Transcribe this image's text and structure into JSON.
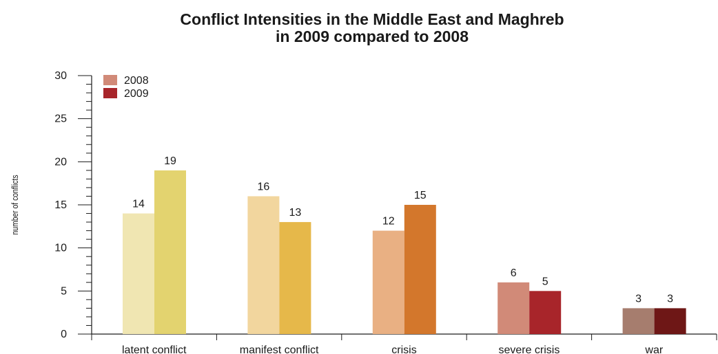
{
  "chart_data": {
    "type": "bar",
    "title": "Conflict Intensities in the Middle East and Maghreb",
    "subtitle": "in 2009 compared to 2008",
    "xlabel": "",
    "ylabel": "number of conflicts",
    "ylim": [
      0,
      30
    ],
    "yticks": [
      0,
      5,
      10,
      15,
      20,
      25,
      30
    ],
    "grid": false,
    "legend_position": "top-left",
    "categories": [
      "latent conflict",
      "manifest conflict",
      "crisis",
      "severe crisis",
      "war"
    ],
    "series": [
      {
        "name": "2008",
        "values": [
          14,
          16,
          12,
          6,
          3
        ],
        "legend_color": "#d18a78",
        "colors": [
          "#f0e6b2",
          "#f2d69e",
          "#e9b083",
          "#d18a78",
          "#a67d6e"
        ]
      },
      {
        "name": "2009",
        "values": [
          19,
          13,
          15,
          5,
          3
        ],
        "legend_color": "#a8252a",
        "colors": [
          "#e3d36f",
          "#e6b84a",
          "#d3772c",
          "#a8252a",
          "#6e1716"
        ]
      }
    ]
  }
}
